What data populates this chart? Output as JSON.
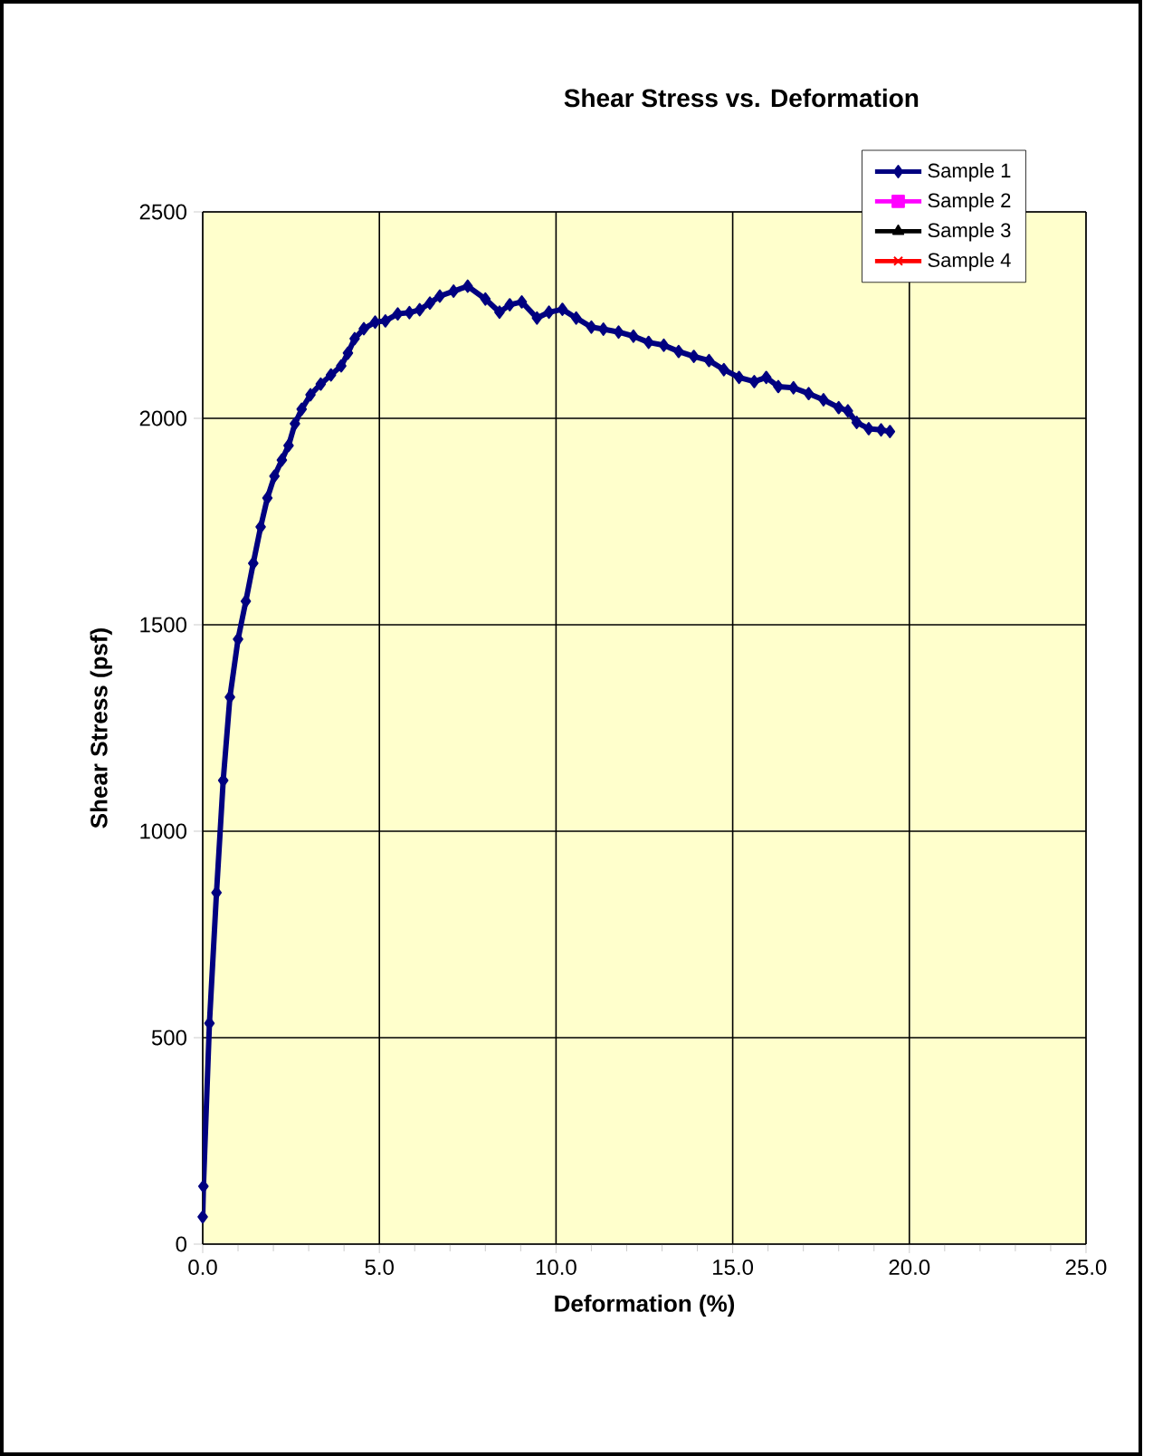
{
  "chart_data": {
    "type": "line",
    "title": "Shear Stress vs. Deformation",
    "xlabel": "Deformation (%)",
    "ylabel": "Shear Stress (psf)",
    "xlim": [
      0,
      25
    ],
    "ylim": [
      0,
      2500
    ],
    "xticks": [
      {
        "value": 0,
        "label": "0.0"
      },
      {
        "value": 5,
        "label": "5.0"
      },
      {
        "value": 10,
        "label": "10.0"
      },
      {
        "value": 15,
        "label": "15.0"
      },
      {
        "value": 20,
        "label": "20.0"
      },
      {
        "value": 25,
        "label": "25.0"
      }
    ],
    "yticks": [
      0,
      500,
      1000,
      1500,
      2000,
      2500
    ],
    "grid": true,
    "legend": "top right",
    "line_style": "solid",
    "series": [
      {
        "name": "Sample 1",
        "color": "#000080",
        "marker": "diamond",
        "x": [
          0,
          0.02,
          0.19,
          0.39,
          0.58,
          0.77,
          1.0,
          1.22,
          1.43,
          1.64,
          1.83,
          2.03,
          2.24,
          2.43,
          2.61,
          2.8,
          3.05,
          3.34,
          3.63,
          3.92,
          4.11,
          4.3,
          4.56,
          4.88,
          5.17,
          5.52,
          5.85,
          6.14,
          6.43,
          6.71,
          7.1,
          7.5,
          8.0,
          8.4,
          8.69,
          9.03,
          9.46,
          9.8,
          10.18,
          10.57,
          11.0,
          11.34,
          11.77,
          12.19,
          12.62,
          13.05,
          13.47,
          13.9,
          14.33,
          14.75,
          15.18,
          15.61,
          15.95,
          16.29,
          16.72,
          17.15,
          17.57,
          18.0,
          18.26,
          18.51,
          18.85,
          19.2,
          19.45
        ],
        "values": [
          66,
          140,
          535,
          851,
          1123,
          1325,
          1465,
          1557,
          1649,
          1737,
          1807,
          1860,
          1899,
          1934,
          1987,
          2022,
          2057,
          2083,
          2105,
          2127,
          2158,
          2193,
          2217,
          2233,
          2236,
          2253,
          2256,
          2263,
          2279,
          2296,
          2308,
          2320,
          2289,
          2257,
          2275,
          2282,
          2243,
          2257,
          2264,
          2243,
          2221,
          2216,
          2209,
          2199,
          2184,
          2177,
          2162,
          2150,
          2140,
          2118,
          2099,
          2089,
          2099,
          2077,
          2074,
          2060,
          2045,
          2026,
          2018,
          1990,
          1975,
          1972,
          1968
        ]
      },
      {
        "name": "Sample 2",
        "color": "#ff00ff",
        "marker": "square"
      },
      {
        "name": "Sample 3",
        "color": "#000000",
        "marker": "triangle"
      },
      {
        "name": "Sample 4",
        "color": "#ff0000",
        "marker": "cross"
      }
    ]
  }
}
